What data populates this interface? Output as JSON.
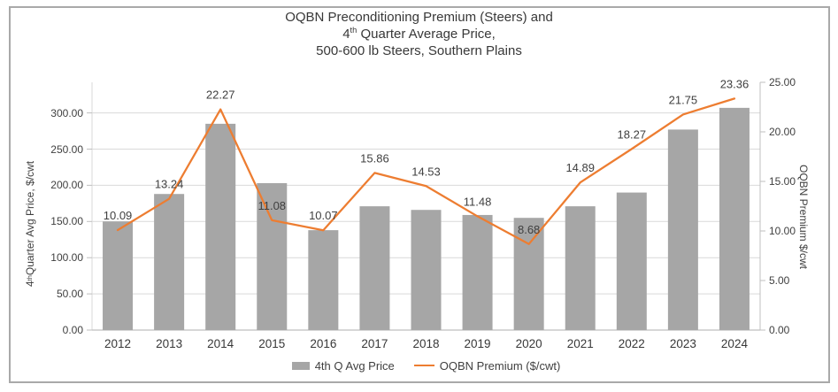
{
  "title": {
    "line1": "OQBN Preconditioning Premium (Steers) and",
    "line2_prefix": "4",
    "line2_sup": "th",
    "line2_rest": " Quarter Average Price,",
    "line3": "500-600 lb Steers, Southern Plains"
  },
  "left_axis": {
    "title_prefix": "4",
    "title_sup": "th",
    "title_rest": " Quarter Avg Price, $/cwt",
    "min": 0,
    "max": 300,
    "step": 50,
    "tick_labels": [
      "0.00",
      "50.00",
      "100.00",
      "150.00",
      "200.00",
      "250.00",
      "300.00"
    ]
  },
  "right_axis": {
    "title": "OQBN Premium $/cwt",
    "min": 0,
    "max": 25,
    "step": 5,
    "tick_labels": [
      "0.00",
      "5.00",
      "10.00",
      "15.00",
      "20.00",
      "25.00"
    ]
  },
  "legend": {
    "bar_label": "4th Q Avg Price",
    "line_label": "OQBN Premium ($/cwt)"
  },
  "colors": {
    "bar": "#A6A6A6",
    "line": "#ED7D31",
    "gridline": "#D9D9D9",
    "axis_line": "#BFBFBF",
    "text": "#3F3F3F"
  },
  "chart_data": {
    "type": "combo",
    "title": "OQBN Preconditioning Premium (Steers) and 4th Quarter Average Price, 500-600 lb Steers, Southern Plains",
    "categories": [
      "2012",
      "2013",
      "2014",
      "2015",
      "2016",
      "2017",
      "2018",
      "2019",
      "2020",
      "2021",
      "2022",
      "2023",
      "2024"
    ],
    "series": [
      {
        "name": "4th Q Avg Price",
        "type": "bar",
        "axis": "left",
        "color": "#A6A6A6",
        "values": [
          150,
          188,
          285,
          203,
          138,
          171,
          166,
          159,
          155,
          171,
          190,
          277,
          307
        ]
      },
      {
        "name": "OQBN Premium ($/cwt)",
        "type": "line",
        "axis": "right",
        "color": "#ED7D31",
        "values": [
          10.09,
          13.24,
          22.27,
          11.08,
          10.07,
          15.86,
          14.53,
          11.48,
          8.68,
          14.89,
          18.27,
          21.75,
          23.36
        ],
        "data_labels": [
          "10.09",
          "13.24",
          "22.27",
          "11.08",
          "10.07",
          "15.86",
          "14.53",
          "11.48",
          "8.68",
          "14.89",
          "18.27",
          "21.75",
          "23.36"
        ]
      }
    ],
    "left_axis_label": "4th Quarter Avg Price, $/cwt",
    "right_axis_label": "OQBN Premium $/cwt",
    "left_ylim": [
      0,
      300
    ],
    "right_ylim": [
      0,
      25
    ],
    "grid": true,
    "legend_position": "bottom"
  }
}
